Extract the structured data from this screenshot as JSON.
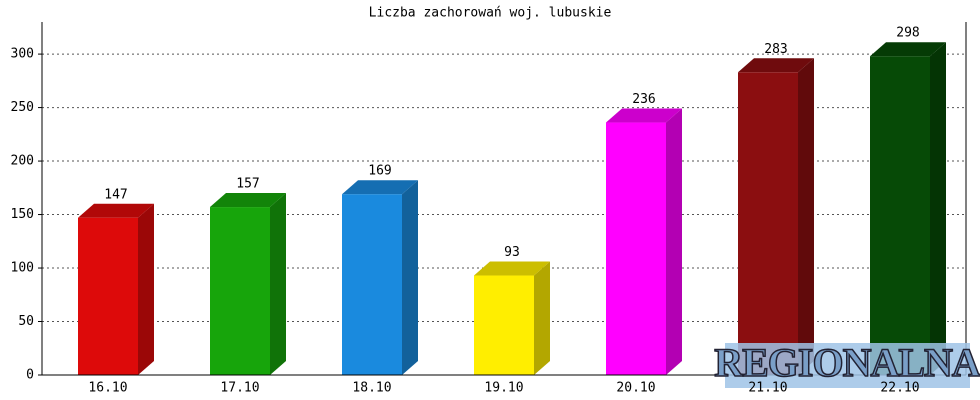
{
  "chart_data": {
    "type": "bar3d",
    "title": "Liczba zachorowań woj. lubuskie",
    "categories": [
      "16.10",
      "17.10",
      "18.10",
      "19.10",
      "20.10",
      "21.10",
      "22.10"
    ],
    "values": [
      147,
      157,
      169,
      93,
      236,
      283,
      298
    ],
    "colors": [
      "#dd0a0a",
      "#17a50b",
      "#1a8ade",
      "#ffee00",
      "#ff00ff",
      "#8b0e10",
      "#064a06"
    ],
    "ylim": [
      0,
      330
    ],
    "yticks": [
      0,
      50,
      100,
      150,
      200,
      250,
      300
    ],
    "grid": true,
    "watermark": "REGIONALNA"
  }
}
